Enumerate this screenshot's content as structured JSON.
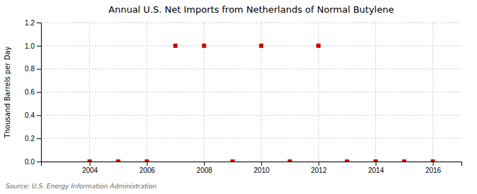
{
  "chart_data": {
    "type": "scatter",
    "title": "Annual U.S. Net Imports from Netherlands of Normal Butylene",
    "ylabel": "Thousand Barrels per Day",
    "annotations": [
      "Source: U.S. Energy Information Administration"
    ],
    "x": [
      2004,
      2005,
      2006,
      2007,
      2008,
      2009,
      2010,
      2011,
      2012,
      2013,
      2014,
      2015,
      2016
    ],
    "values": [
      0,
      0,
      0,
      1,
      1,
      0,
      1,
      0,
      1,
      0,
      0,
      0,
      0
    ],
    "color": "#cc0000",
    "marker": "square",
    "xlim": [
      2002.3,
      2017.0
    ],
    "xticks": [
      2004,
      2006,
      2008,
      2010,
      2012,
      2014,
      2016
    ],
    "ylim": [
      0,
      1.2
    ],
    "yticks": [
      {
        "value": 0.0,
        "label": "0.0"
      },
      0.2,
      0.4,
      0.6,
      0.8,
      {
        "value": 1.0,
        "label": "1.0"
      },
      1.2
    ],
    "grid": true
  }
}
